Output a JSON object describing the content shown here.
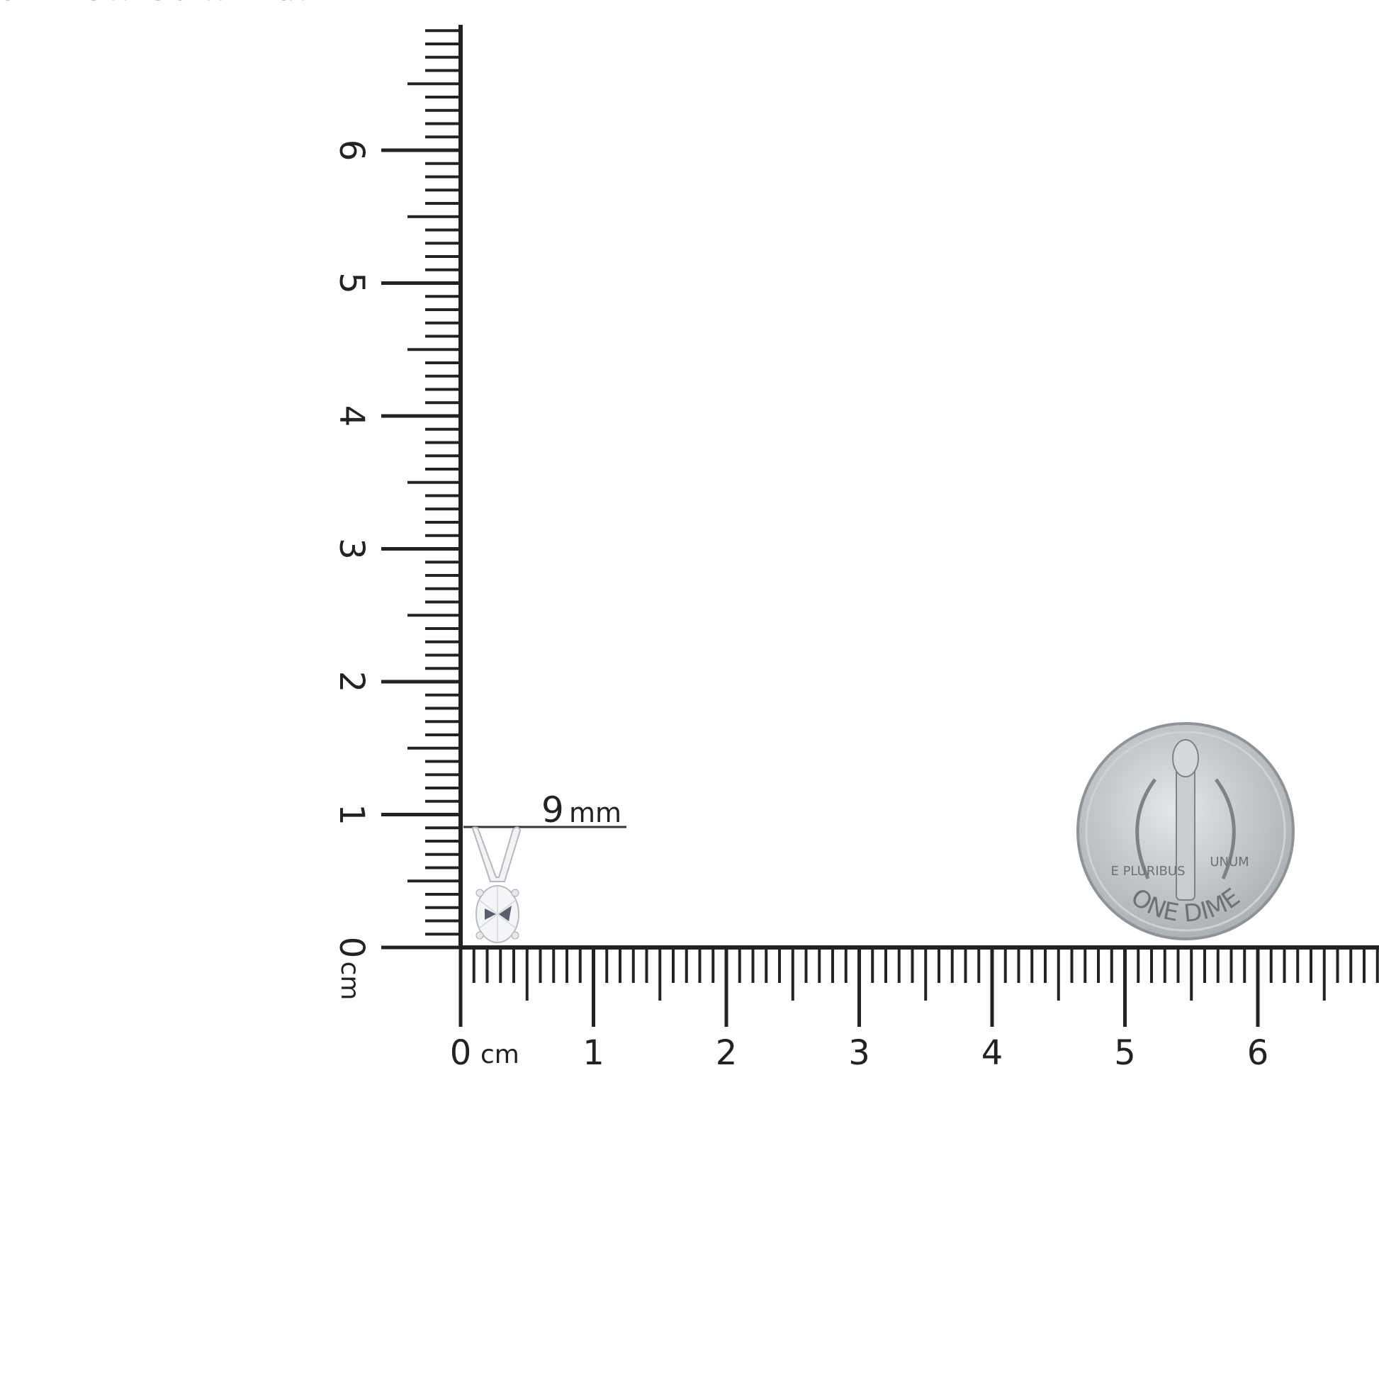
{
  "ruler": {
    "unit": "cm",
    "horizontal_labels": [
      "0",
      "1",
      "2",
      "3",
      "4",
      "5",
      "6"
    ],
    "vertical_labels": [
      "0",
      "1",
      "2",
      "3",
      "4",
      "5",
      "6"
    ],
    "color": "#222222"
  },
  "measurement": {
    "value": "9",
    "unit": "mm"
  },
  "coin": {
    "top_text": "UNITED STATES OF AMERICA",
    "bottom_text": "ONE DIME",
    "left_motto": "E PLURIBUS",
    "right_motto": "UNUM",
    "color": "#b9bcbf"
  },
  "product": {
    "name_icon": "oval-diamond-pendant-icon"
  }
}
